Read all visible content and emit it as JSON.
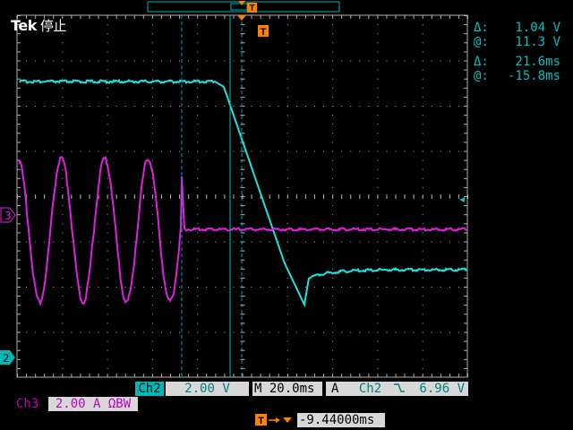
{
  "brand": {
    "name": "Tek",
    "state": "停止"
  },
  "cursor_readout": {
    "voltage": {
      "delta_symbol": "Δ:",
      "delta": "1.04 V",
      "at_symbol": "@:",
      "at": "11.3 V"
    },
    "time": {
      "delta_symbol": "Δ:",
      "delta": "21.6ms",
      "at_symbol": "@:",
      "at": "-15.8ms"
    }
  },
  "channel2": {
    "tag": "Ch2",
    "scale": "2.00 V",
    "color": "#20e0e0",
    "marker": "2"
  },
  "channel3": {
    "tag": "Ch3",
    "scale": "2.00 A ΩBW",
    "color": "#e020e0",
    "marker": "3"
  },
  "timebase": {
    "value": "M 20.0ms"
  },
  "trigger": {
    "mode": "A",
    "source": "Ch2",
    "slope": "falling",
    "level": "6.96 V",
    "marker": "T"
  },
  "delay": {
    "value": "-9.44000ms"
  },
  "colors": {
    "grid": "#b0b0b0",
    "cursor": "#00c0c0",
    "trigger": "#ff8000",
    "readout": "#00c0c0"
  }
}
